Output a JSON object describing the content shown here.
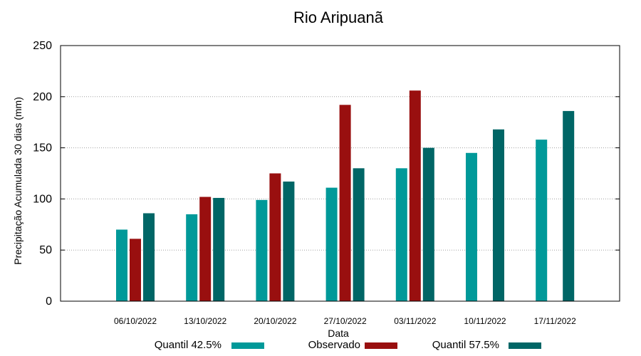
{
  "chart_data": {
    "type": "bar",
    "title": "Rio Aripuanã",
    "xlabel": "Data",
    "ylabel": "Precipitação Acumulada 30 dias (mm)",
    "ylim": [
      0,
      250
    ],
    "yticks": [
      0,
      50,
      100,
      150,
      200,
      250
    ],
    "grid": true,
    "legend_position": "bottom",
    "categories": [
      "06/10/2022",
      "13/10/2022",
      "20/10/2022",
      "27/10/2022",
      "03/11/2022",
      "10/11/2022",
      "17/11/2022"
    ],
    "series": [
      {
        "name": "Quantil 42.5%",
        "color": "#009999",
        "values": [
          70,
          85,
          99,
          111,
          130,
          145,
          158
        ]
      },
      {
        "name": "Observado",
        "color": "#990f0f",
        "values": [
          61,
          102,
          125,
          192,
          206,
          null,
          null
        ]
      },
      {
        "name": "Quantil 57.5%",
        "color": "#006666",
        "values": [
          86,
          101,
          117,
          130,
          150,
          168,
          186
        ]
      }
    ]
  }
}
